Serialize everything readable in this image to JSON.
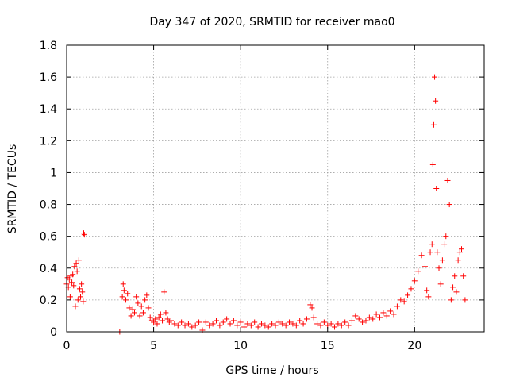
{
  "chart_data": {
    "type": "scatter",
    "title": "Day 347 of 2020, SRMTID for receiver mao0",
    "xlabel": "GPS time / hours",
    "ylabel": "SRMTID / TECUs",
    "xlim": [
      0,
      24
    ],
    "ylim": [
      0,
      1.8
    ],
    "xticks": [
      0,
      5,
      10,
      15,
      20
    ],
    "xtick_labels": [
      "0",
      "5",
      "10",
      "15",
      "20"
    ],
    "yticks": [
      0,
      0.2,
      0.4,
      0.6,
      0.8,
      1.0,
      1.2,
      1.4,
      1.6,
      1.8
    ],
    "ytick_labels": [
      "0",
      "0.2",
      "0.4",
      "0.6",
      "0.8",
      "1",
      "1.2",
      "1.4",
      "1.6",
      "1.8"
    ],
    "grid": true,
    "marker": "plus",
    "color": "#ff0000",
    "series": [
      {
        "name": "SRMTID",
        "points": [
          [
            0.0,
            0.3
          ],
          [
            0.05,
            0.34
          ],
          [
            0.1,
            0.28
          ],
          [
            0.15,
            0.33
          ],
          [
            0.2,
            0.22
          ],
          [
            0.25,
            0.35
          ],
          [
            0.3,
            0.31
          ],
          [
            0.35,
            0.36
          ],
          [
            0.4,
            0.29
          ],
          [
            0.45,
            0.41
          ],
          [
            0.5,
            0.16
          ],
          [
            0.55,
            0.43
          ],
          [
            0.6,
            0.38
          ],
          [
            0.65,
            0.2
          ],
          [
            0.7,
            0.45
          ],
          [
            0.75,
            0.27
          ],
          [
            0.8,
            0.22
          ],
          [
            0.85,
            0.3
          ],
          [
            0.9,
            0.25
          ],
          [
            0.95,
            0.19
          ],
          [
            0.98,
            0.62
          ],
          [
            1.02,
            0.61
          ],
          [
            3.05,
            0.0
          ],
          [
            3.2,
            0.22
          ],
          [
            3.25,
            0.3
          ],
          [
            3.3,
            0.26
          ],
          [
            3.4,
            0.2
          ],
          [
            3.5,
            0.24
          ],
          [
            3.6,
            0.15
          ],
          [
            3.7,
            0.1
          ],
          [
            3.8,
            0.14
          ],
          [
            3.9,
            0.12
          ],
          [
            4.0,
            0.22
          ],
          [
            4.1,
            0.18
          ],
          [
            4.2,
            0.1
          ],
          [
            4.3,
            0.16
          ],
          [
            4.4,
            0.12
          ],
          [
            4.5,
            0.2
          ],
          [
            4.6,
            0.23
          ],
          [
            4.7,
            0.15
          ],
          [
            4.8,
            0.09
          ],
          [
            4.9,
            0.07
          ],
          [
            5.0,
            0.06
          ],
          [
            5.1,
            0.08
          ],
          [
            5.2,
            0.05
          ],
          [
            5.3,
            0.09
          ],
          [
            5.4,
            0.11
          ],
          [
            5.5,
            0.07
          ],
          [
            5.6,
            0.25
          ],
          [
            5.7,
            0.12
          ],
          [
            5.8,
            0.08
          ],
          [
            5.9,
            0.06
          ],
          [
            6.0,
            0.07
          ],
          [
            6.2,
            0.05
          ],
          [
            6.4,
            0.04
          ],
          [
            6.6,
            0.06
          ],
          [
            6.8,
            0.04
          ],
          [
            7.0,
            0.05
          ],
          [
            7.2,
            0.03
          ],
          [
            7.4,
            0.04
          ],
          [
            7.6,
            0.06
          ],
          [
            7.8,
            0.01
          ],
          [
            8.0,
            0.06
          ],
          [
            8.2,
            0.04
          ],
          [
            8.4,
            0.05
          ],
          [
            8.6,
            0.07
          ],
          [
            8.8,
            0.04
          ],
          [
            9.0,
            0.06
          ],
          [
            9.2,
            0.08
          ],
          [
            9.4,
            0.05
          ],
          [
            9.6,
            0.07
          ],
          [
            9.8,
            0.04
          ],
          [
            10.0,
            0.06
          ],
          [
            10.2,
            0.03
          ],
          [
            10.4,
            0.05
          ],
          [
            10.6,
            0.04
          ],
          [
            10.8,
            0.06
          ],
          [
            11.0,
            0.03
          ],
          [
            11.2,
            0.05
          ],
          [
            11.4,
            0.04
          ],
          [
            11.6,
            0.03
          ],
          [
            11.8,
            0.05
          ],
          [
            12.0,
            0.04
          ],
          [
            12.2,
            0.06
          ],
          [
            12.4,
            0.05
          ],
          [
            12.6,
            0.04
          ],
          [
            12.8,
            0.06
          ],
          [
            13.0,
            0.05
          ],
          [
            13.2,
            0.04
          ],
          [
            13.4,
            0.07
          ],
          [
            13.6,
            0.05
          ],
          [
            13.8,
            0.08
          ],
          [
            14.0,
            0.17
          ],
          [
            14.1,
            0.15
          ],
          [
            14.2,
            0.09
          ],
          [
            14.4,
            0.05
          ],
          [
            14.6,
            0.04
          ],
          [
            14.8,
            0.06
          ],
          [
            15.0,
            0.04
          ],
          [
            15.2,
            0.05
          ],
          [
            15.4,
            0.03
          ],
          [
            15.6,
            0.05
          ],
          [
            15.8,
            0.04
          ],
          [
            16.0,
            0.06
          ],
          [
            16.2,
            0.04
          ],
          [
            16.4,
            0.07
          ],
          [
            16.6,
            0.1
          ],
          [
            16.8,
            0.08
          ],
          [
            17.0,
            0.06
          ],
          [
            17.2,
            0.07
          ],
          [
            17.4,
            0.09
          ],
          [
            17.6,
            0.08
          ],
          [
            17.8,
            0.11
          ],
          [
            18.0,
            0.09
          ],
          [
            18.2,
            0.12
          ],
          [
            18.4,
            0.1
          ],
          [
            18.6,
            0.13
          ],
          [
            18.8,
            0.11
          ],
          [
            19.0,
            0.16
          ],
          [
            19.2,
            0.2
          ],
          [
            19.4,
            0.19
          ],
          [
            19.6,
            0.23
          ],
          [
            19.8,
            0.27
          ],
          [
            20.0,
            0.32
          ],
          [
            20.2,
            0.38
          ],
          [
            20.4,
            0.48
          ],
          [
            20.6,
            0.41
          ],
          [
            20.7,
            0.26
          ],
          [
            20.8,
            0.22
          ],
          [
            20.9,
            0.5
          ],
          [
            21.0,
            0.55
          ],
          [
            21.05,
            1.05
          ],
          [
            21.1,
            1.3
          ],
          [
            21.15,
            1.6
          ],
          [
            21.2,
            1.45
          ],
          [
            21.25,
            0.9
          ],
          [
            21.3,
            0.5
          ],
          [
            21.4,
            0.4
          ],
          [
            21.5,
            0.3
          ],
          [
            21.6,
            0.45
          ],
          [
            21.7,
            0.55
          ],
          [
            21.8,
            0.6
          ],
          [
            21.9,
            0.95
          ],
          [
            22.0,
            0.8
          ],
          [
            22.1,
            0.2
          ],
          [
            22.2,
            0.28
          ],
          [
            22.3,
            0.35
          ],
          [
            22.4,
            0.25
          ],
          [
            22.5,
            0.45
          ],
          [
            22.6,
            0.5
          ],
          [
            22.7,
            0.52
          ],
          [
            22.8,
            0.35
          ],
          [
            22.9,
            0.2
          ]
        ]
      }
    ]
  }
}
